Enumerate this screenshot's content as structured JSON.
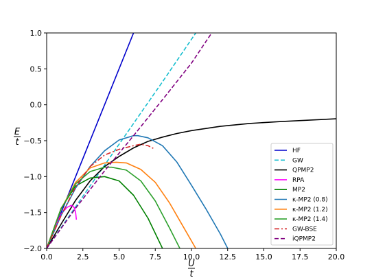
{
  "chart_data": {
    "type": "line",
    "title": "",
    "xlabel_num": "U",
    "xlabel_den": "t",
    "ylabel_num": "E",
    "ylabel_den": "t",
    "xlim": [
      0,
      20
    ],
    "ylim": [
      -2,
      1
    ],
    "x_ticks": [
      0,
      2.5,
      5,
      7.5,
      10,
      12.5,
      15,
      17.5,
      20
    ],
    "x_tick_labels": [
      "0.0",
      "2.5",
      "5.0",
      "7.5",
      "10.0",
      "12.5",
      "15.0",
      "17.5",
      "20.0"
    ],
    "y_ticks": [
      1,
      0.5,
      0,
      -0.5,
      -1,
      -1.5,
      -2
    ],
    "y_tick_labels": [
      "1.0",
      "0.5",
      "0.0",
      "−0.5",
      "−1.0",
      "−1.5",
      "−2.0"
    ],
    "grid": false,
    "legend_position": "lower right",
    "series": [
      {
        "name": "HF",
        "color": "#0000cc",
        "dash": "solid",
        "x": [
          0,
          6.0
        ],
        "y": [
          -2,
          1.0
        ]
      },
      {
        "name": "GW",
        "color": "#17becf",
        "dash": "dashed",
        "x": [
          0,
          2,
          4,
          6,
          8,
          10.3
        ],
        "y": [
          -2,
          -1.42,
          -0.84,
          -0.26,
          0.32,
          1.0
        ]
      },
      {
        "name": "QPMP2",
        "color": "#000000",
        "dash": "solid",
        "x": [
          0,
          1,
          2,
          3,
          4,
          5,
          6,
          7,
          8,
          9,
          10,
          12,
          14,
          16,
          18,
          20
        ],
        "y": [
          -2,
          -1.66,
          -1.33,
          -1.06,
          -0.86,
          -0.72,
          -0.6,
          -0.51,
          -0.45,
          -0.4,
          -0.36,
          -0.3,
          -0.26,
          -0.235,
          -0.215,
          -0.195
        ]
      },
      {
        "name": "RPA",
        "color": "#ff00ff",
        "dash": "solid",
        "x": [
          0,
          0.5,
          1.0,
          1.4,
          1.7,
          1.9,
          2.0,
          2.05
        ],
        "y": [
          -2,
          -1.75,
          -1.52,
          -1.43,
          -1.4,
          -1.43,
          -1.5,
          -1.6
        ]
      },
      {
        "name": "MP2",
        "color": "#008000",
        "dash": "solid",
        "x": [
          0,
          1,
          2,
          3,
          4,
          5,
          6,
          7,
          8.0
        ],
        "y": [
          -2,
          -1.44,
          -1.13,
          -1.02,
          -1.0,
          -1.06,
          -1.26,
          -1.58,
          -2.0
        ]
      },
      {
        "name": "κ-MP2 (0.8)",
        "color": "#1f77b4",
        "dash": "solid",
        "x": [
          0,
          1,
          2,
          3,
          4,
          5,
          6,
          6.3,
          7,
          8,
          9,
          10,
          11,
          12,
          12.5
        ],
        "y": [
          -2,
          -1.54,
          -1.16,
          -0.86,
          -0.64,
          -0.49,
          -0.43,
          -0.43,
          -0.46,
          -0.57,
          -0.8,
          -1.12,
          -1.45,
          -1.8,
          -2.0
        ]
      },
      {
        "name": "κ-MP2 (1.2)",
        "color": "#ff7f0e",
        "dash": "solid",
        "x": [
          0,
          1,
          2,
          3,
          4,
          4.8,
          5.5,
          6.5,
          7.5,
          8.5,
          9.5,
          10.3
        ],
        "y": [
          -2,
          -1.45,
          -1.08,
          -0.88,
          -0.81,
          -0.8,
          -0.81,
          -0.9,
          -1.08,
          -1.37,
          -1.72,
          -2.0
        ]
      },
      {
        "name": "κ-MP2 (1.4)",
        "color": "#2ca02c",
        "dash": "solid",
        "x": [
          0,
          1,
          2,
          3,
          4,
          4.5,
          5.5,
          6.5,
          7.5,
          8.5,
          9.2
        ],
        "y": [
          -2,
          -1.45,
          -1.1,
          -0.93,
          -0.87,
          -0.87,
          -0.91,
          -1.06,
          -1.34,
          -1.72,
          -2.0
        ]
      },
      {
        "name": "GW-BSE",
        "color": "#d62728",
        "dash": "dashdot",
        "x": [
          0,
          1,
          2,
          3,
          4,
          5,
          6,
          6.5,
          7.0,
          7.4
        ],
        "y": [
          -2,
          -1.54,
          -1.14,
          -0.86,
          -0.7,
          -0.62,
          -0.57,
          -0.55,
          -0.57,
          -0.61
        ]
      },
      {
        "name": "iQPMP2",
        "color": "#800080",
        "dash": "dashed",
        "x": [
          0,
          2,
          4,
          6,
          8,
          10,
          11.4
        ],
        "y": [
          -2,
          -1.44,
          -0.92,
          -0.43,
          0.07,
          0.58,
          1.0
        ]
      }
    ]
  }
}
